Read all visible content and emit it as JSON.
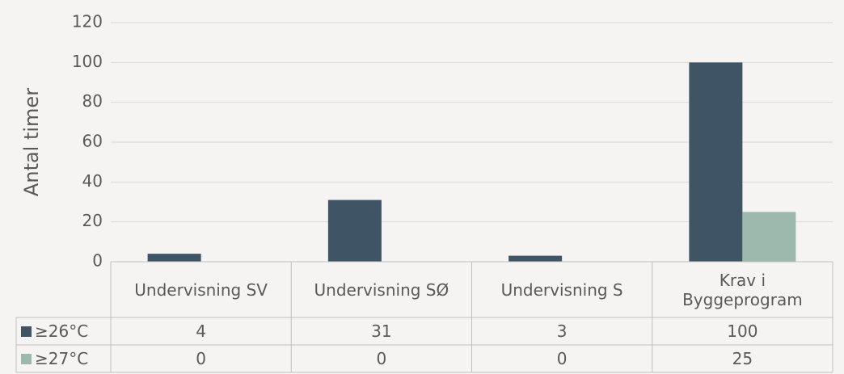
{
  "chart_data": {
    "type": "bar",
    "y_label": "Antal timer",
    "categories": [
      "Undervisning SV",
      "Undervisning SØ",
      "Undervisning S",
      "Krav i Byggeprogram"
    ],
    "series": [
      {
        "name": "≥26°C",
        "color": "#3f5566",
        "values": [
          4,
          31,
          3,
          100
        ]
      },
      {
        "name": "≥27°C",
        "color": "#9db8ad",
        "values": [
          0,
          0,
          0,
          25
        ]
      }
    ],
    "ylim": [
      0,
      120
    ],
    "yticks": [
      0,
      20,
      40,
      60,
      80,
      100,
      120
    ],
    "grid": true,
    "data_table": true
  }
}
